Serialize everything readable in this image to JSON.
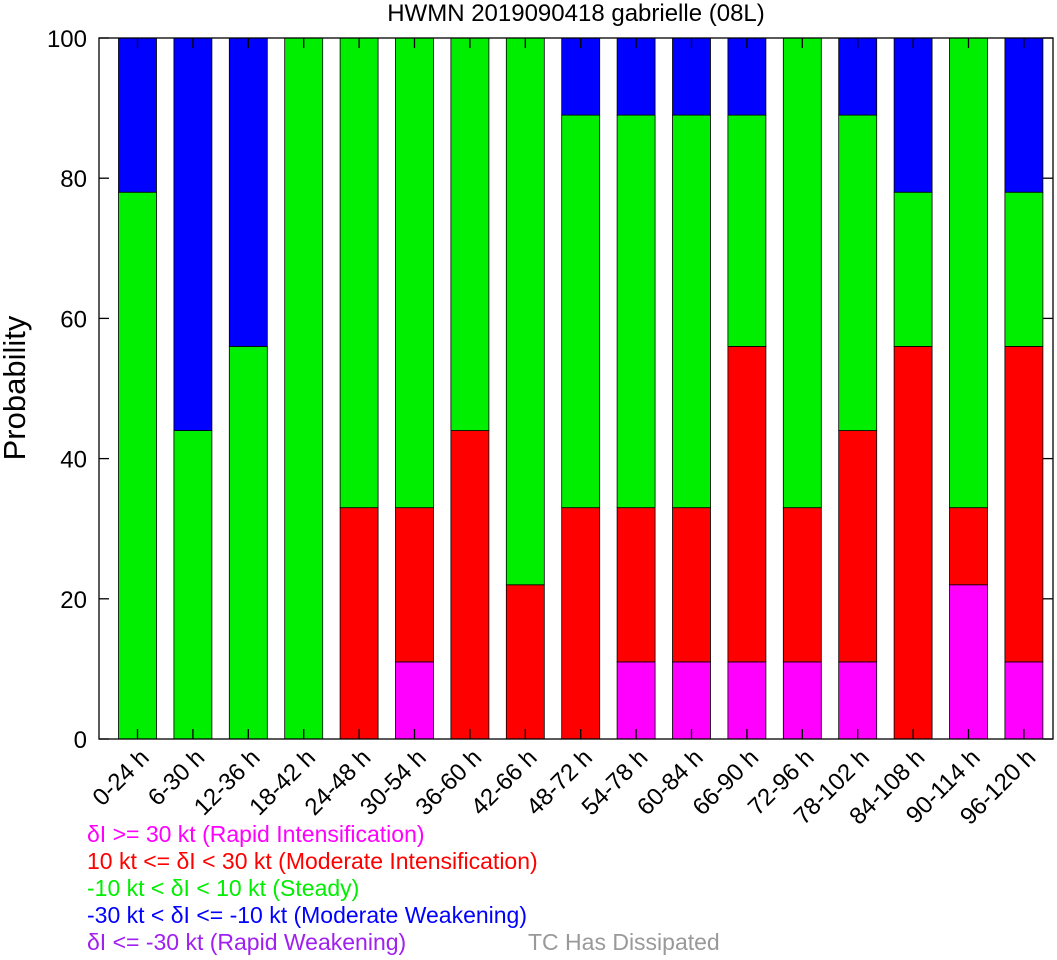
{
  "chart_data": {
    "type": "bar",
    "stacked": true,
    "title": "HWMN 2019090418 gabrielle (08L)",
    "xlabel": "",
    "ylabel": "Probability",
    "ylim": [
      0,
      100
    ],
    "yticks": [
      "0",
      "20",
      "40",
      "60",
      "80",
      "100"
    ],
    "grid": false,
    "categories": [
      "0-24 h",
      "6-30 h",
      "12-36 h",
      "18-42 h",
      "24-48 h",
      "30-54 h",
      "36-60 h",
      "42-66 h",
      "48-72 h",
      "54-78 h",
      "60-84 h",
      "66-90 h",
      "72-96 h",
      "78-102 h",
      "84-108 h",
      "90-114 h",
      "96-120 h"
    ],
    "series": [
      {
        "name": "RI",
        "color": "#ff00ff",
        "values": [
          0,
          0,
          0,
          0,
          0,
          11,
          0,
          0,
          0,
          11,
          11,
          11,
          11,
          11,
          0,
          22,
          11
        ]
      },
      {
        "name": "MI",
        "color": "#ff0000",
        "values": [
          0,
          0,
          0,
          0,
          33,
          22,
          44,
          22,
          33,
          22,
          22,
          45,
          22,
          33,
          56,
          11,
          45
        ]
      },
      {
        "name": "Steady",
        "color": "#00ee00",
        "values": [
          78,
          44,
          56,
          100,
          67,
          67,
          56,
          78,
          56,
          56,
          56,
          33,
          67,
          45,
          22,
          67,
          22
        ]
      },
      {
        "name": "MW",
        "color": "#0000ff",
        "values": [
          22,
          56,
          44,
          0,
          0,
          0,
          0,
          0,
          11,
          11,
          11,
          11,
          0,
          11,
          22,
          0,
          22
        ]
      }
    ],
    "legend": {
      "position": "bottom-left",
      "entries": [
        {
          "text": "δI >= 30 kt (Rapid Intensification)",
          "color": "#ff00ff"
        },
        {
          "text": "10 kt <= δI < 30 kt (Moderate Intensification)",
          "color": "#ff0000"
        },
        {
          "text": "-10 kt < δI < 10 kt (Steady)",
          "color": "#00ee00"
        },
        {
          "text": "-30 kt < δI <= -10 kt (Moderate Weakening)",
          "color": "#0000ff"
        },
        {
          "text": "δI <= -30 kt (Rapid Weakening)",
          "color": "#a020f0"
        }
      ],
      "extra": {
        "text": "TC Has Dissipated",
        "color": "#999999"
      }
    }
  }
}
